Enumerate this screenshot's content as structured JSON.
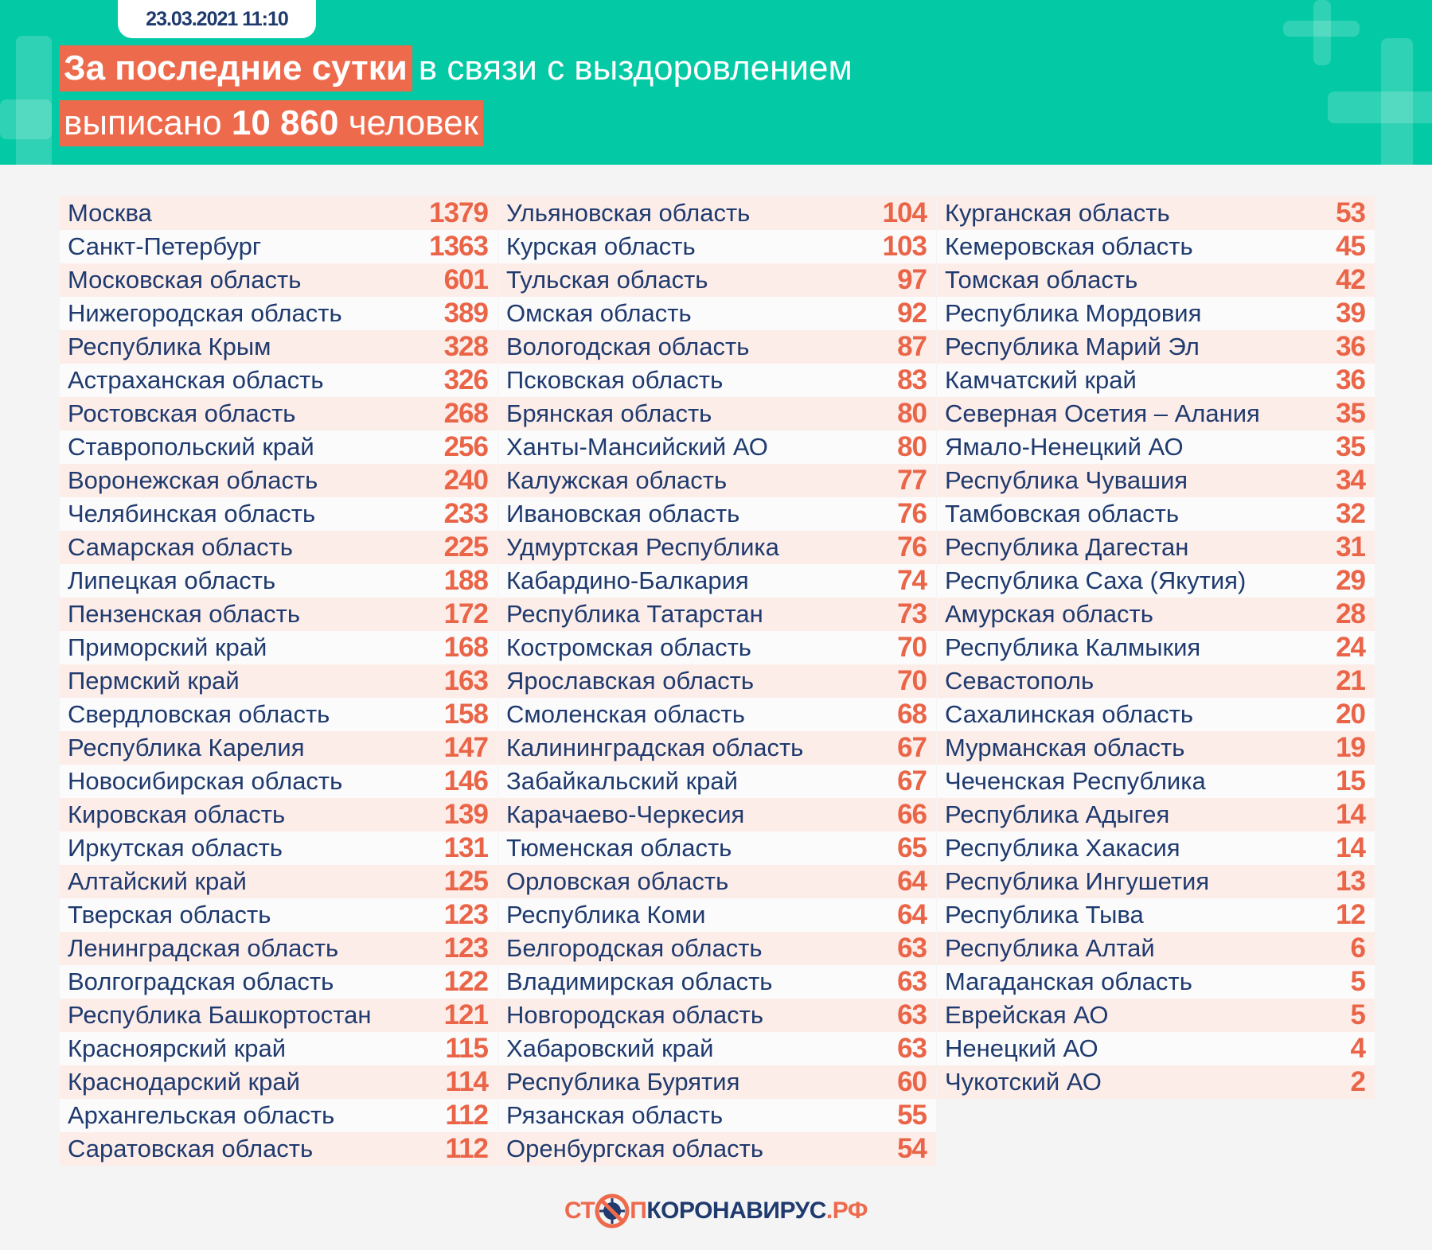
{
  "header": {
    "date": "23.03.2021 11:10",
    "title_highlight": "За последние сутки",
    "title_rest": "в связи с выздоровлением",
    "line2_pre": "выписано",
    "line2_number": "10 860",
    "line2_post": "человек"
  },
  "colors": {
    "teal": "#03c9a5",
    "accent": "#ee6a4d",
    "text": "#1f3a6e"
  },
  "columns": [
    [
      [
        "Москва",
        "1379"
      ],
      [
        "Санкт-Петербург",
        "1363"
      ],
      [
        "Московская область",
        "601"
      ],
      [
        "Нижегородская область",
        "389"
      ],
      [
        "Республика Крым",
        "328"
      ],
      [
        "Астраханская область",
        "326"
      ],
      [
        "Ростовская область",
        "268"
      ],
      [
        "Ставропольский край",
        "256"
      ],
      [
        "Воронежская область",
        "240"
      ],
      [
        "Челябинская область",
        "233"
      ],
      [
        "Самарская область",
        "225"
      ],
      [
        "Липецкая область",
        "188"
      ],
      [
        "Пензенская область",
        "172"
      ],
      [
        "Приморский край",
        "168"
      ],
      [
        "Пермский край",
        "163"
      ],
      [
        "Свердловская область",
        "158"
      ],
      [
        "Республика Карелия",
        "147"
      ],
      [
        "Новосибирская область",
        "146"
      ],
      [
        "Кировская область",
        "139"
      ],
      [
        "Иркутская область",
        "131"
      ],
      [
        "Алтайский край",
        "125"
      ],
      [
        "Тверская область",
        "123"
      ],
      [
        "Ленинградская область",
        "123"
      ],
      [
        "Волгоградская область",
        "122"
      ],
      [
        "Республика Башкортостан",
        "121"
      ],
      [
        "Красноярский край",
        "115"
      ],
      [
        "Краснодарский край",
        "114"
      ],
      [
        "Архангельская область",
        "112"
      ],
      [
        "Саратовская область",
        "112"
      ]
    ],
    [
      [
        "Ульяновская область",
        "104"
      ],
      [
        "Курская область",
        "103"
      ],
      [
        "Тульская область",
        "97"
      ],
      [
        "Омская область",
        "92"
      ],
      [
        "Вологодская область",
        "87"
      ],
      [
        "Псковская область",
        "83"
      ],
      [
        "Брянская область",
        "80"
      ],
      [
        "Ханты-Мансийский АО",
        "80"
      ],
      [
        "Калужская область",
        "77"
      ],
      [
        "Ивановская область",
        "76"
      ],
      [
        "Удмуртская Республика",
        "76"
      ],
      [
        "Кабардино-Балкария",
        "74"
      ],
      [
        "Республика Татарстан",
        "73"
      ],
      [
        "Костромская область",
        "70"
      ],
      [
        "Ярославская область",
        "70"
      ],
      [
        "Смоленская область",
        "68"
      ],
      [
        "Калининградская область",
        "67"
      ],
      [
        "Забайкальский край",
        "67"
      ],
      [
        "Карачаево-Черкесия",
        "66"
      ],
      [
        "Тюменская область",
        "65"
      ],
      [
        "Орловская область",
        "64"
      ],
      [
        "Республика Коми",
        "64"
      ],
      [
        "Белгородская область",
        "63"
      ],
      [
        "Владимирская область",
        "63"
      ],
      [
        "Новгородская область",
        "63"
      ],
      [
        "Хабаровский край",
        "63"
      ],
      [
        "Республика Бурятия",
        "60"
      ],
      [
        "Рязанская область",
        "55"
      ],
      [
        "Оренбургская область",
        "54"
      ]
    ],
    [
      [
        "Курганская область",
        "53"
      ],
      [
        "Кемеровская область",
        "45"
      ],
      [
        "Томская область",
        "42"
      ],
      [
        "Республика Мордовия",
        "39"
      ],
      [
        "Республика Марий Эл",
        "36"
      ],
      [
        "Камчатский край",
        "36"
      ],
      [
        "Северная Осетия – Алания",
        "35"
      ],
      [
        "Ямало-Ненецкий АО",
        "35"
      ],
      [
        "Республика Чувашия",
        "34"
      ],
      [
        "Тамбовская область",
        "32"
      ],
      [
        "Республика Дагестан",
        "31"
      ],
      [
        "Республика Саха (Якутия)",
        "29"
      ],
      [
        "Амурская область",
        "28"
      ],
      [
        "Республика Калмыкия",
        "24"
      ],
      [
        "Севастополь",
        "21"
      ],
      [
        "Сахалинская область",
        "20"
      ],
      [
        "Мурманская область",
        "19"
      ],
      [
        "Чеченская Республика",
        "15"
      ],
      [
        "Республика Адыгея",
        "14"
      ],
      [
        "Республика Хакасия",
        "14"
      ],
      [
        "Республика Ингушетия",
        "13"
      ],
      [
        "Республика Тыва",
        "12"
      ],
      [
        "Республика Алтай",
        "6"
      ],
      [
        "Магаданская область",
        "5"
      ],
      [
        "Еврейская АО",
        "5"
      ],
      [
        "Ненецкий АО",
        "4"
      ],
      [
        "Чукотский АО",
        "2"
      ]
    ]
  ],
  "footer": {
    "logo_a": "СТ",
    "logo_b": "ПКОРОНАВИРУС",
    "logo_c": ".РФ",
    "logo_icon": "crossed-virus-icon"
  }
}
